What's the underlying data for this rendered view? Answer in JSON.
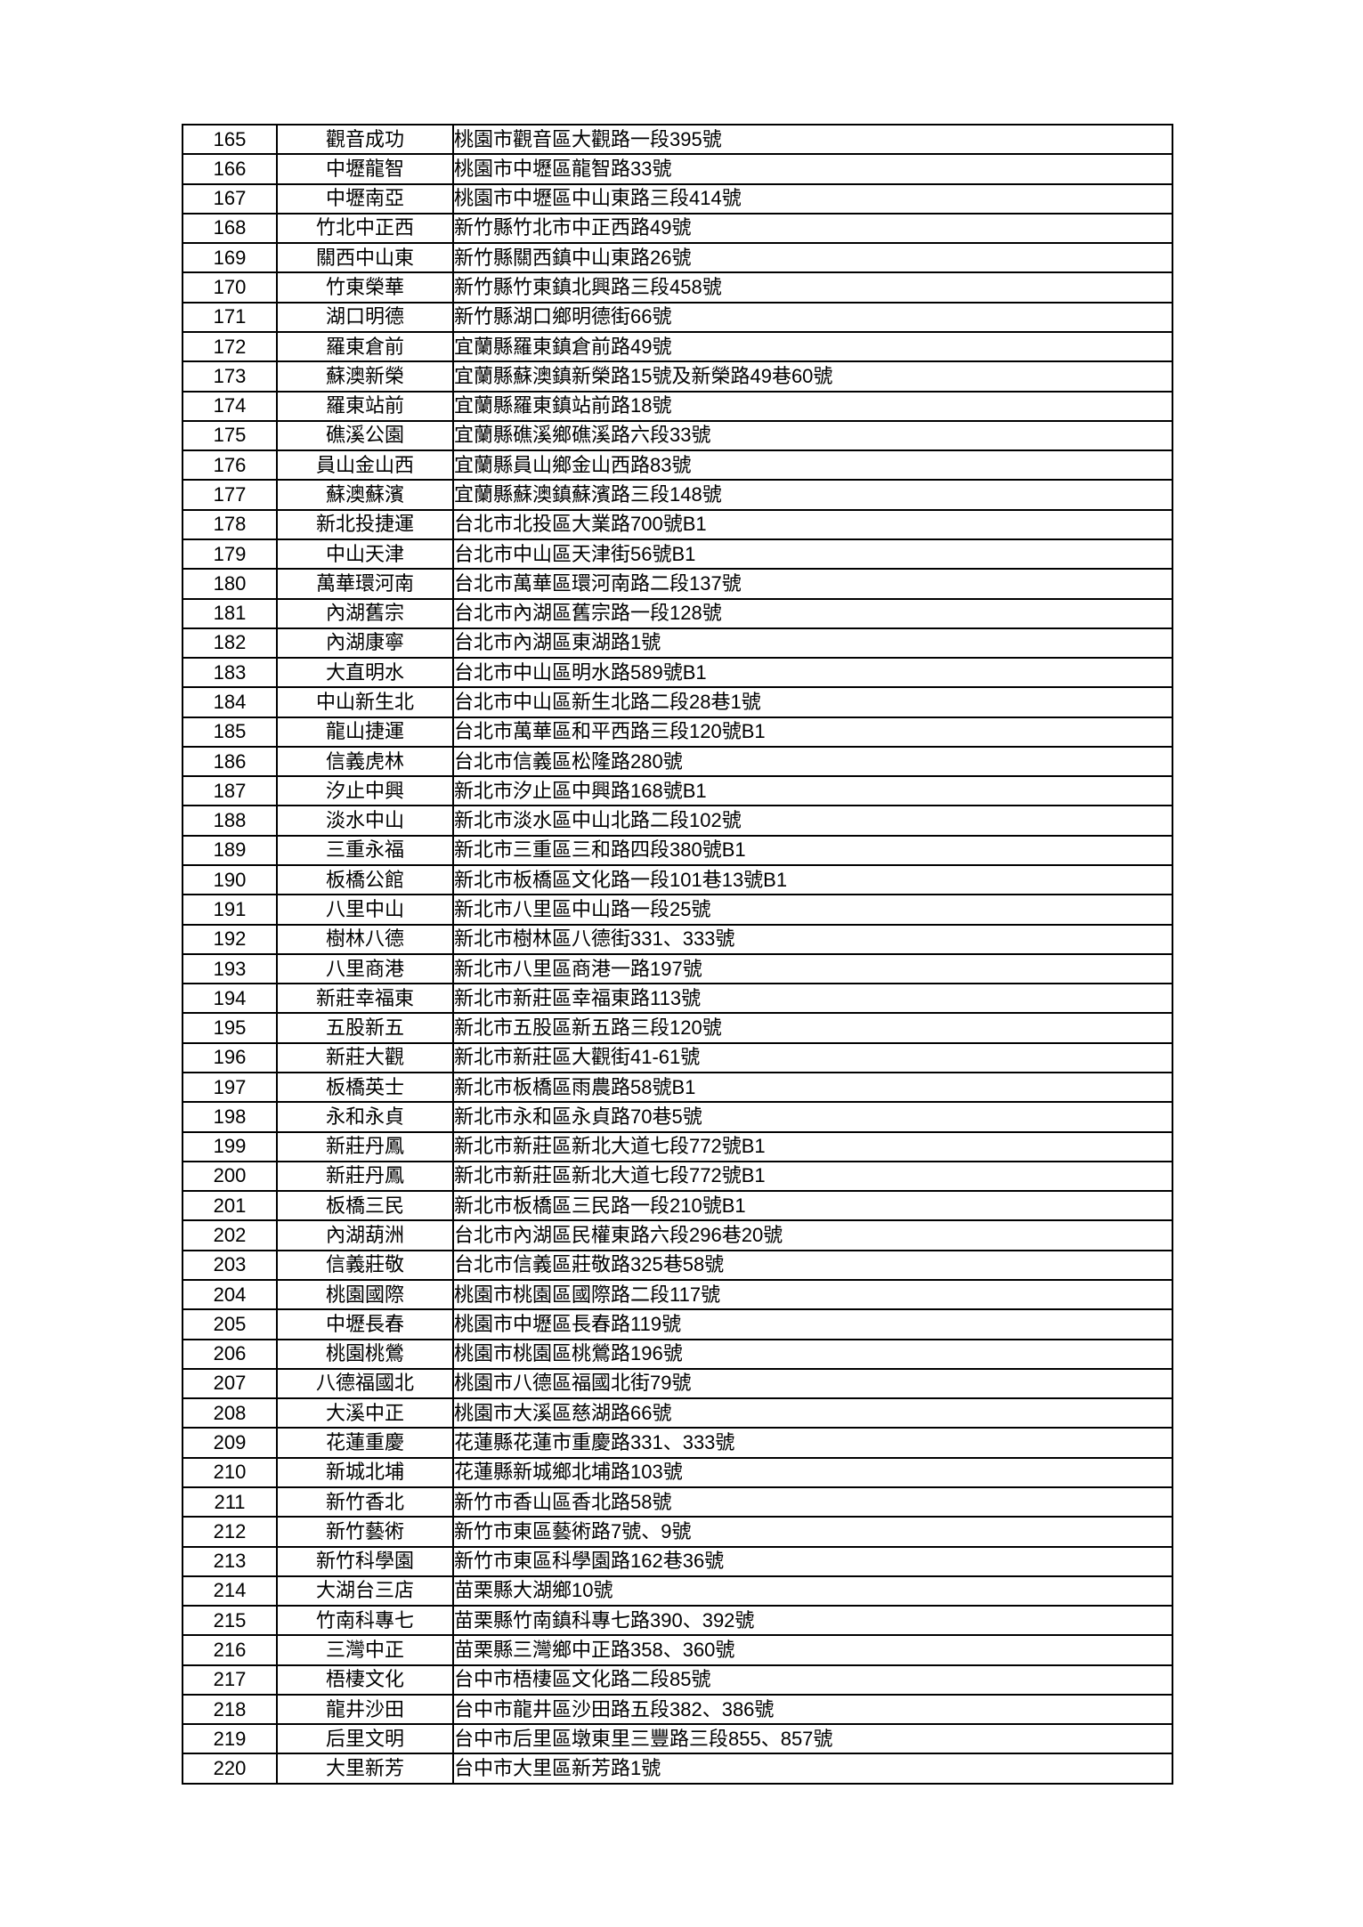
{
  "page": {
    "background_color": "#ffffff",
    "border_color": "#000000",
    "text_color": "#000000"
  },
  "table": {
    "rows": [
      {
        "no": "165",
        "name": "觀音成功",
        "address": "桃園市觀音區大觀路一段395號"
      },
      {
        "no": "166",
        "name": "中壢龍智",
        "address": "桃園市中壢區龍智路33號"
      },
      {
        "no": "167",
        "name": "中壢南亞",
        "address": "桃園市中壢區中山東路三段414號"
      },
      {
        "no": "168",
        "name": "竹北中正西",
        "address": "新竹縣竹北市中正西路49號"
      },
      {
        "no": "169",
        "name": "關西中山東",
        "address": "新竹縣關西鎮中山東路26號"
      },
      {
        "no": "170",
        "name": "竹東榮華",
        "address": "新竹縣竹東鎮北興路三段458號"
      },
      {
        "no": "171",
        "name": "湖口明德",
        "address": "新竹縣湖口鄉明德街66號"
      },
      {
        "no": "172",
        "name": "羅東倉前",
        "address": "宜蘭縣羅東鎮倉前路49號"
      },
      {
        "no": "173",
        "name": "蘇澳新榮",
        "address": "宜蘭縣蘇澳鎮新榮路15號及新榮路49巷60號"
      },
      {
        "no": "174",
        "name": "羅東站前",
        "address": "宜蘭縣羅東鎮站前路18號"
      },
      {
        "no": "175",
        "name": "礁溪公園",
        "address": "宜蘭縣礁溪鄉礁溪路六段33號"
      },
      {
        "no": "176",
        "name": "員山金山西",
        "address": "宜蘭縣員山鄉金山西路83號"
      },
      {
        "no": "177",
        "name": "蘇澳蘇濱",
        "address": "宜蘭縣蘇澳鎮蘇濱路三段148號"
      },
      {
        "no": "178",
        "name": "新北投捷運",
        "address": "台北市北投區大業路700號B1"
      },
      {
        "no": "179",
        "name": "中山天津",
        "address": "台北市中山區天津街56號B1"
      },
      {
        "no": "180",
        "name": "萬華環河南",
        "address": "台北市萬華區環河南路二段137號"
      },
      {
        "no": "181",
        "name": "內湖舊宗",
        "address": "台北市內湖區舊宗路一段128號"
      },
      {
        "no": "182",
        "name": "內湖康寧",
        "address": "台北市內湖區東湖路1號"
      },
      {
        "no": "183",
        "name": "大直明水",
        "address": "台北市中山區明水路589號B1"
      },
      {
        "no": "184",
        "name": "中山新生北",
        "address": "台北市中山區新生北路二段28巷1號"
      },
      {
        "no": "185",
        "name": "龍山捷運",
        "address": "台北市萬華區和平西路三段120號B1"
      },
      {
        "no": "186",
        "name": "信義虎林",
        "address": "台北市信義區松隆路280號"
      },
      {
        "no": "187",
        "name": "汐止中興",
        "address": "新北市汐止區中興路168號B1"
      },
      {
        "no": "188",
        "name": "淡水中山",
        "address": "新北市淡水區中山北路二段102號"
      },
      {
        "no": "189",
        "name": "三重永福",
        "address": "新北市三重區三和路四段380號B1"
      },
      {
        "no": "190",
        "name": "板橋公館",
        "address": "新北市板橋區文化路一段101巷13號B1"
      },
      {
        "no": "191",
        "name": "八里中山",
        "address": "新北市八里區中山路一段25號"
      },
      {
        "no": "192",
        "name": "樹林八德",
        "address": "新北市樹林區八德街331、333號"
      },
      {
        "no": "193",
        "name": "八里商港",
        "address": "新北市八里區商港一路197號"
      },
      {
        "no": "194",
        "name": "新莊幸福東",
        "address": "新北市新莊區幸福東路113號"
      },
      {
        "no": "195",
        "name": "五股新五",
        "address": "新北市五股區新五路三段120號"
      },
      {
        "no": "196",
        "name": "新莊大觀",
        "address": "新北市新莊區大觀街41-61號"
      },
      {
        "no": "197",
        "name": "板橋英士",
        "address": "新北市板橋區雨農路58號B1"
      },
      {
        "no": "198",
        "name": "永和永貞",
        "address": "新北市永和區永貞路70巷5號"
      },
      {
        "no": "199",
        "name": "新莊丹鳳",
        "address": "新北市新莊區新北大道七段772號B1"
      },
      {
        "no": "200",
        "name": "新莊丹鳳",
        "address": "新北市新莊區新北大道七段772號B1"
      },
      {
        "no": "201",
        "name": "板橋三民",
        "address": "新北市板橋區三民路一段210號B1"
      },
      {
        "no": "202",
        "name": "內湖葫洲",
        "address": "台北市內湖區民權東路六段296巷20號"
      },
      {
        "no": "203",
        "name": "信義莊敬",
        "address": "台北市信義區莊敬路325巷58號"
      },
      {
        "no": "204",
        "name": "桃園國際",
        "address": "桃園市桃園區國際路二段117號"
      },
      {
        "no": "205",
        "name": "中壢長春",
        "address": "桃園市中壢區長春路119號"
      },
      {
        "no": "206",
        "name": "桃園桃鶯",
        "address": "桃園市桃園區桃鶯路196號"
      },
      {
        "no": "207",
        "name": "八德福國北",
        "address": "桃園市八德區福國北街79號"
      },
      {
        "no": "208",
        "name": "大溪中正",
        "address": "桃園市大溪區慈湖路66號"
      },
      {
        "no": "209",
        "name": "花蓮重慶",
        "address": "花蓮縣花蓮市重慶路331、333號"
      },
      {
        "no": "210",
        "name": "新城北埔",
        "address": "花蓮縣新城鄉北埔路103號"
      },
      {
        "no": "211",
        "name": "新竹香北",
        "address": "新竹市香山區香北路58號"
      },
      {
        "no": "212",
        "name": "新竹藝術",
        "address": "新竹市東區藝術路7號、9號"
      },
      {
        "no": "213",
        "name": "新竹科學園",
        "address": "新竹市東區科學園路162巷36號"
      },
      {
        "no": "214",
        "name": "大湖台三店",
        "address": "苗栗縣大湖鄉10號"
      },
      {
        "no": "215",
        "name": "竹南科專七",
        "address": "苗栗縣竹南鎮科專七路390、392號"
      },
      {
        "no": "216",
        "name": "三灣中正",
        "address": "苗栗縣三灣鄉中正路358、360號"
      },
      {
        "no": "217",
        "name": "梧棲文化",
        "address": "台中市梧棲區文化路二段85號"
      },
      {
        "no": "218",
        "name": "龍井沙田",
        "address": "台中市龍井區沙田路五段382、386號"
      },
      {
        "no": "219",
        "name": "后里文明",
        "address": "台中市后里區墩東里三豐路三段855、857號"
      },
      {
        "no": "220",
        "name": "大里新芳",
        "address": "台中市大里區新芳路1號"
      }
    ]
  }
}
